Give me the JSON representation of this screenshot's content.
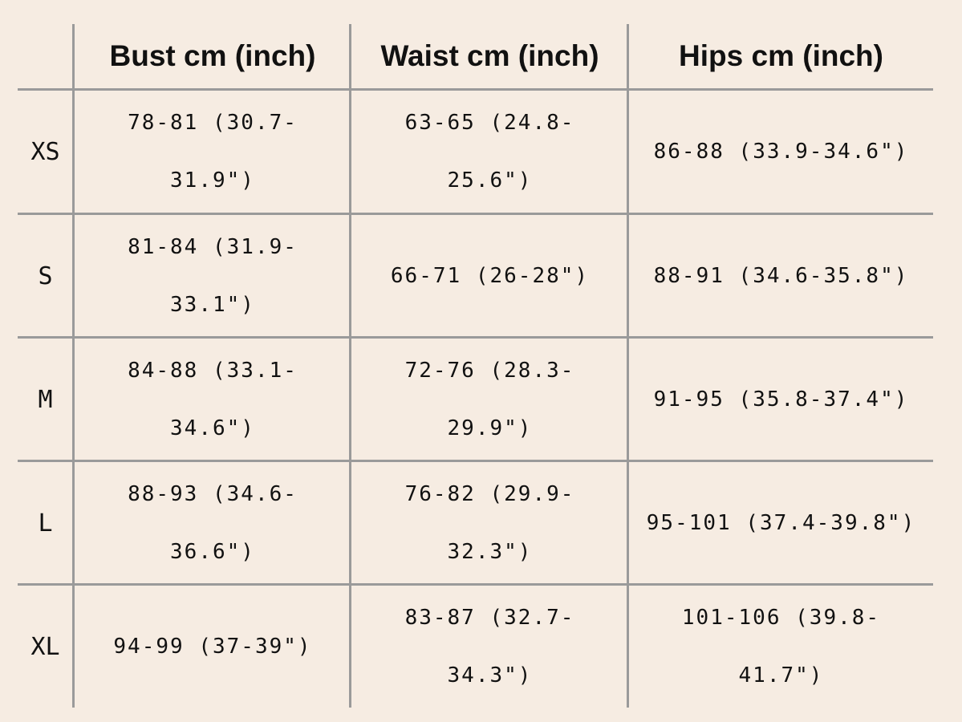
{
  "table": {
    "header": [
      "Bust cm (inch)",
      "Waist cm (inch)",
      "Hips cm (inch)"
    ],
    "rows": [
      {
        "size": "XS",
        "cells": [
          "78-81 (30.7-31.9\")",
          "63-65 (24.8-25.6\")",
          "86-88 (33.9-34.6\")"
        ]
      },
      {
        "size": "S",
        "cells": [
          "81-84 (31.9-33.1\")",
          "66-71 (26-28\")",
          "88-91 (34.6-35.8\")"
        ]
      },
      {
        "size": "M",
        "cells": [
          "84-88 (33.1-34.6\")",
          "72-76 (28.3-29.9\")",
          "91-95 (35.8-37.4\")"
        ]
      },
      {
        "size": "L",
        "cells": [
          "88-93 (34.6-36.6\")",
          "76-82 (29.9-32.3\")",
          "95-101 (37.4-39.8\")"
        ]
      },
      {
        "size": "XL",
        "cells": [
          "94-99 (37-39\")",
          "83-87 (32.7-34.3\")",
          "101-106 (39.8-41.7\")"
        ]
      }
    ]
  }
}
